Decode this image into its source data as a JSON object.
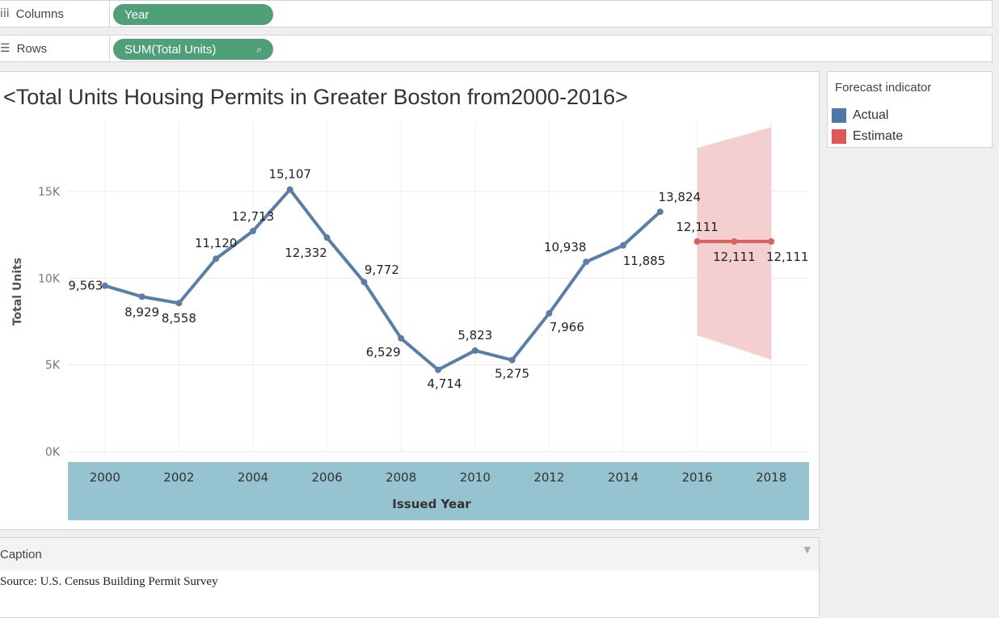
{
  "shelves": {
    "columns": {
      "icon": "iii",
      "label": "Columns",
      "pill": "Year"
    },
    "rows": {
      "icon": "☰",
      "label": "Rows",
      "pill": "SUM(Total Units)",
      "pill_icon": "⌕"
    }
  },
  "view": {
    "title": "<Total Units  Housing Permits in Greater Boston from2000-2016>"
  },
  "legend": {
    "title": "Forecast indicator",
    "items": [
      {
        "label": "Actual",
        "color": "#4e79a7"
      },
      {
        "label": "Estimate",
        "color": "#e15759"
      }
    ]
  },
  "caption": {
    "header": "Caption",
    "text": "Source: U.S. Census Building Permit Survey",
    "arrow_icon": "▼"
  },
  "chart_data": {
    "type": "line",
    "title": "",
    "xlabel": "Issued Year",
    "ylabel": "Total Units",
    "x_ticks": [
      "2000",
      "2002",
      "2004",
      "2006",
      "2008",
      "2010",
      "2012",
      "2014",
      "2016",
      "2018"
    ],
    "y_ticks": [
      "0K",
      "5K",
      "10K",
      "15K"
    ],
    "xlim": [
      1999,
      2019
    ],
    "ylim": [
      0,
      19000
    ],
    "grid": true,
    "series": [
      {
        "name": "Actual",
        "color": "#5b7ea8",
        "x": [
          2000,
          2001,
          2002,
          2003,
          2004,
          2005,
          2006,
          2007,
          2008,
          2009,
          2010,
          2011,
          2012,
          2013,
          2014,
          2015
        ],
        "values": [
          9563,
          8929,
          8558,
          11120,
          12713,
          15107,
          12332,
          9772,
          6529,
          4714,
          5823,
          5275,
          7966,
          10938,
          11885,
          13824
        ],
        "labels": [
          "9,563",
          "8,929",
          "8,558",
          "11,120",
          "12,713",
          "15,107",
          "12,332",
          "9,772",
          "6,529",
          "4,714",
          "5,823",
          "5,275",
          "7,966",
          "10,938",
          "11,885",
          "13,824"
        ]
      },
      {
        "name": "Estimate",
        "color": "#d9605c",
        "x": [
          2016,
          2017,
          2018
        ],
        "values": [
          12111,
          12111,
          12111
        ],
        "labels": [
          "12,111",
          "12,111",
          "12,111"
        ]
      }
    ],
    "prediction_band": {
      "x": [
        2016,
        2018
      ],
      "upper": [
        17500,
        18700
      ],
      "lower": [
        6700,
        5300
      ],
      "color": "#f2cccd"
    },
    "axis_band_color": "#96c3d0"
  }
}
